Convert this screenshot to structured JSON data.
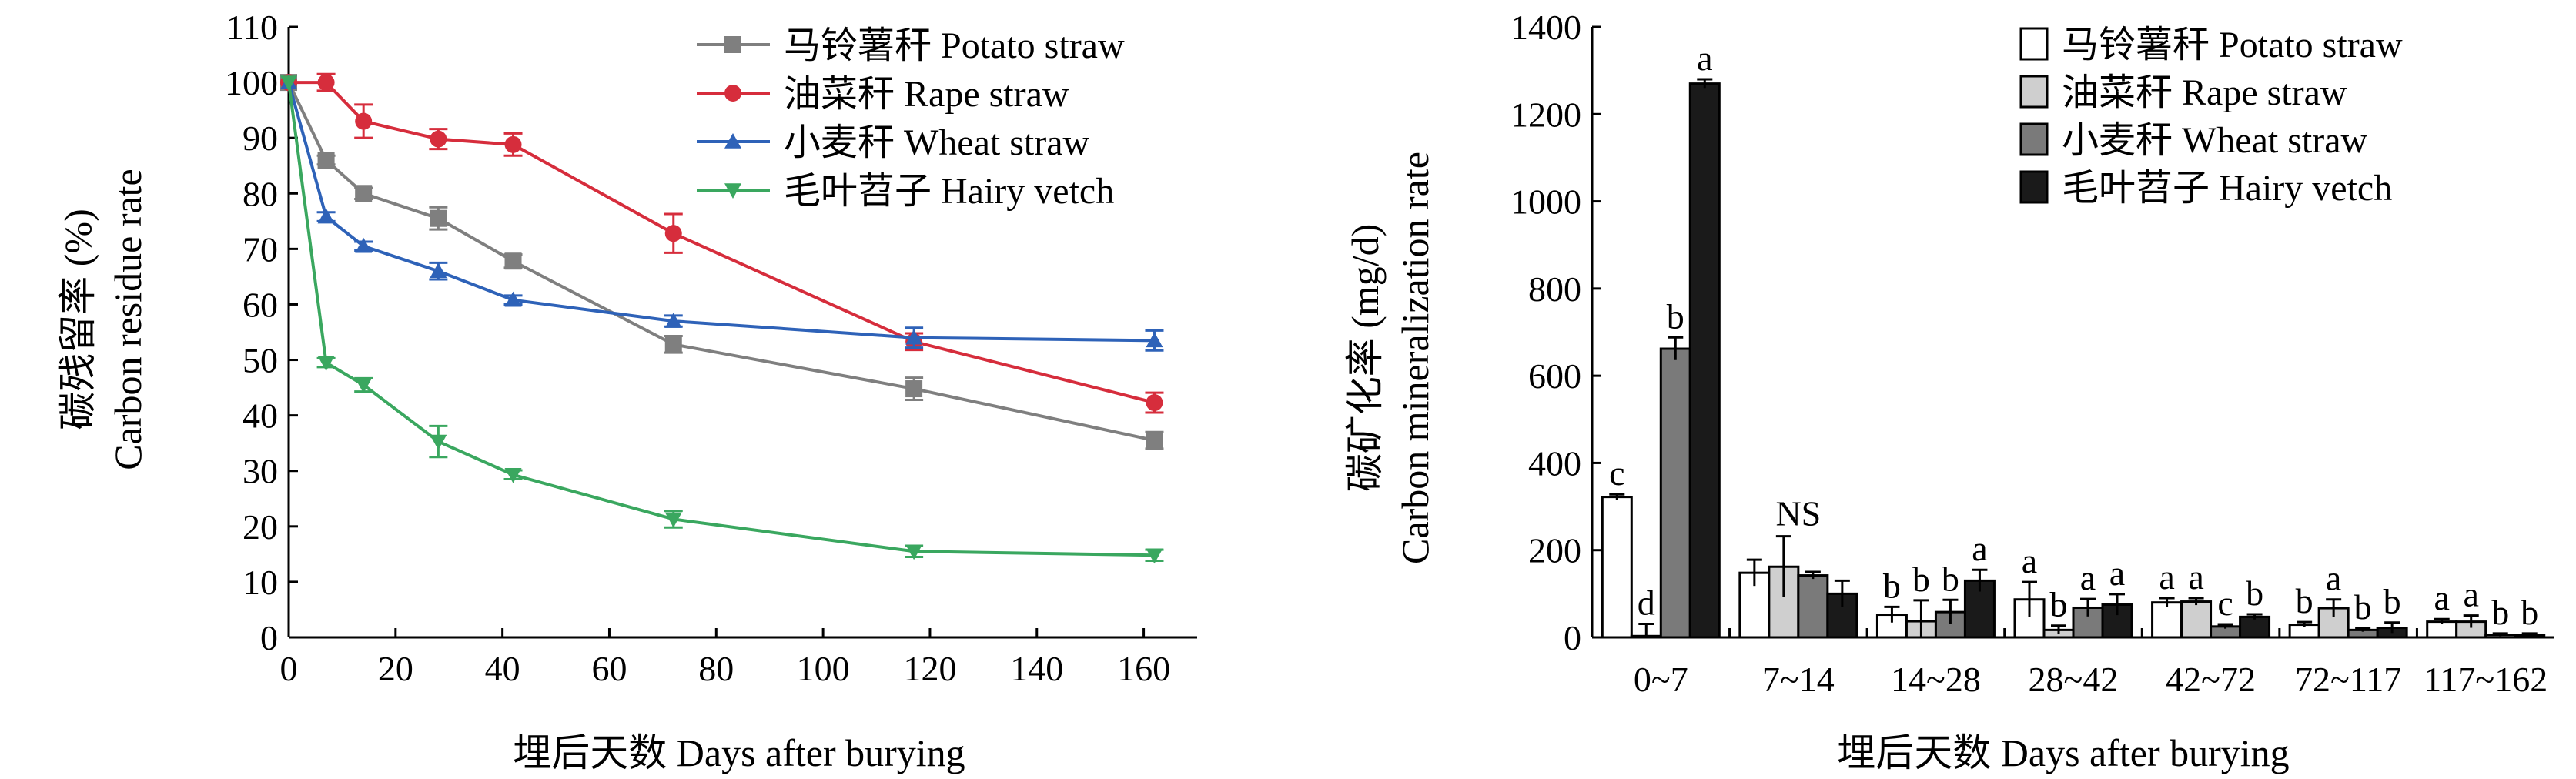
{
  "colors": {
    "potato": "#7f7f7f",
    "rape": "#d62d3c",
    "wheat": "#2e62b8",
    "vetch": "#3aa75f",
    "bar_potato": "#ffffff",
    "bar_rape": "#cfcfcf",
    "bar_wheat": "#7a7a7a",
    "bar_vetch": "#1a1a1a"
  },
  "chart_data": [
    {
      "type": "line",
      "xlabel": "埋后天数 Days after burying",
      "ylabel_cn": "碳残留率 (%)",
      "ylabel_en": "Carbon residue rate",
      "xlim": [
        0,
        170
      ],
      "ylim": [
        0,
        110
      ],
      "xticks": [
        "0",
        "20",
        "40",
        "60",
        "80",
        "100",
        "120",
        "140",
        "160"
      ],
      "yticks": [
        "0",
        "10",
        "20",
        "30",
        "40",
        "50",
        "60",
        "70",
        "80",
        "90",
        "100",
        "110"
      ],
      "grid": false,
      "legend": "top-right",
      "x": [
        0,
        7,
        14,
        28,
        42,
        72,
        117,
        162
      ],
      "series": [
        {
          "name": "马铃薯秆 Potato straw",
          "marker": "square",
          "color_key": "potato",
          "values": [
            100,
            86,
            80,
            75.5,
            67.8,
            52.8,
            44.8,
            35.5
          ],
          "errors": [
            0,
            0.8,
            1,
            2,
            1.2,
            1.5,
            2,
            1.5
          ]
        },
        {
          "name": "油菜秆 Rape straw",
          "marker": "circle",
          "color_key": "rape",
          "values": [
            100,
            100,
            93,
            89.8,
            88.8,
            72.8,
            53.3,
            42.3
          ],
          "errors": [
            0,
            1.5,
            3,
            1.8,
            2,
            3.5,
            1.5,
            1.8
          ]
        },
        {
          "name": "小麦秆 Wheat straw",
          "marker": "triangle-up",
          "color_key": "wheat",
          "values": [
            100,
            75.8,
            70.5,
            66,
            60.8,
            57,
            54,
            53.5
          ],
          "errors": [
            0,
            0.8,
            0.8,
            1.5,
            0.8,
            1,
            1.8,
            1.8
          ]
        },
        {
          "name": "毛叶苕子 Hairy vetch",
          "marker": "triangle-down",
          "color_key": "vetch",
          "values": [
            100,
            49.5,
            45.5,
            35.3,
            29.3,
            21.3,
            15.5,
            14.8
          ],
          "errors": [
            0,
            0.8,
            1.2,
            2.8,
            0.8,
            1.5,
            1,
            1
          ]
        }
      ]
    },
    {
      "type": "bar",
      "xlabel": "埋后天数 Days after burying",
      "ylabel_cn": "碳矿化率 (mg/d)",
      "ylabel_en": "Carbon mineralization rate",
      "ylim": [
        0,
        1400
      ],
      "yticks": [
        "0",
        "200",
        "400",
        "600",
        "800",
        "1000",
        "1200",
        "1400"
      ],
      "grid": false,
      "legend": "top-right",
      "categories": [
        "0~7",
        "7~14",
        "14~28",
        "28~42",
        "42~72",
        "72~117",
        "117~162"
      ],
      "group_labels": [
        [
          "c",
          "d",
          "b",
          "a"
        ],
        [
          "",
          "",
          "",
          ""
        ],
        [
          "b",
          "b",
          "b",
          "a"
        ],
        [
          "a",
          "b",
          "a",
          "a"
        ],
        [
          "a",
          "a",
          "c",
          "b"
        ],
        [
          "b",
          "a",
          "b",
          "b"
        ],
        [
          "a",
          "a",
          "b",
          "b"
        ]
      ],
      "group_notes": [
        "",
        "NS",
        "",
        "",
        "",
        "",
        ""
      ],
      "series": [
        {
          "name": "马铃薯秆 Potato straw",
          "color_key": "bar_potato",
          "values": [
            322,
            148,
            52,
            87,
            80,
            29,
            36
          ],
          "errors": [
            6,
            30,
            18,
            40,
            10,
            6,
            6
          ]
        },
        {
          "name": "油菜秆 Rape straw",
          "color_key": "bar_rape",
          "values": [
            3,
            162,
            37,
            17,
            82,
            67,
            36
          ],
          "errors": [
            28,
            70,
            48,
            10,
            8,
            20,
            14
          ]
        },
        {
          "name": "小麦秆 Wheat straw",
          "color_key": "bar_wheat",
          "values": [
            662,
            142,
            58,
            68,
            25,
            17,
            6
          ],
          "errors": [
            26,
            8,
            28,
            20,
            5,
            4,
            3
          ]
        },
        {
          "name": "毛叶苕子 Hairy vetch",
          "color_key": "bar_vetch",
          "values": [
            1270,
            100,
            130,
            75,
            47,
            22,
            5
          ],
          "errors": [
            10,
            30,
            25,
            24,
            6,
            12,
            4
          ]
        }
      ]
    }
  ]
}
